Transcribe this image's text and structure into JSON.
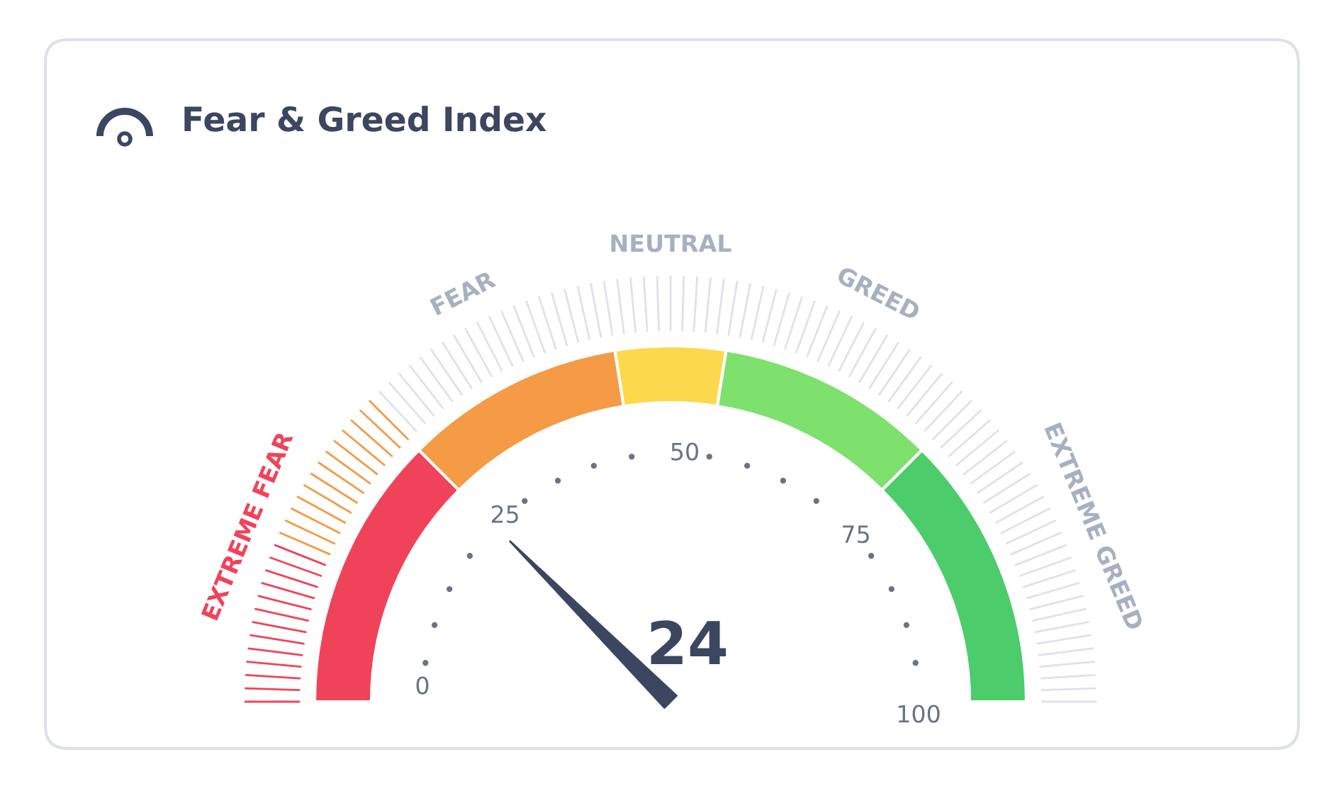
{
  "chart_data": {
    "type": "donut",
    "title": "Fear & Greed Index",
    "categories": [
      "EXTREME FEAR",
      "FEAR",
      "NEUTRAL",
      "GREED",
      "EXTREME GREED"
    ],
    "values": [
      25,
      20,
      10,
      20,
      25
    ],
    "colors": [
      "#f0435a",
      "#f59a45",
      "#fcd94c",
      "#7ee06d",
      "#4ccc6a"
    ],
    "needle": "EXTREME FEAR",
    "annotations": [
      "24",
      "0",
      "25",
      "50",
      "75",
      "100"
    ]
  }
}
